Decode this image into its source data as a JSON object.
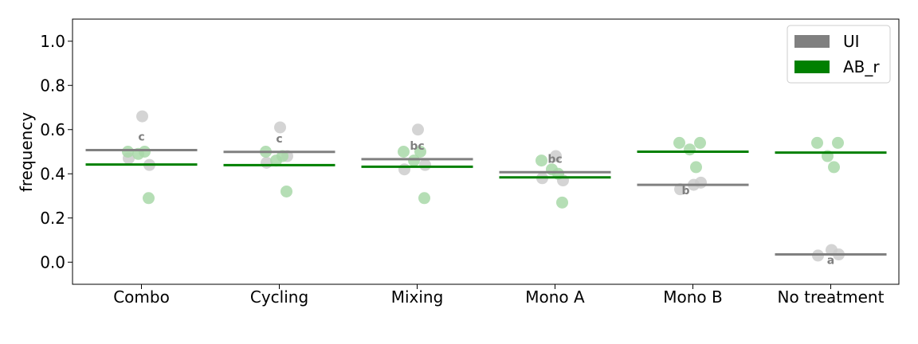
{
  "chart_data": {
    "type": "scatter",
    "title": "",
    "xlabel": "",
    "ylabel": "frequency",
    "ylim": [
      -0.1,
      1.1
    ],
    "yticks": [
      "0.0",
      "0.2",
      "0.4",
      "0.6",
      "0.8",
      "1.0"
    ],
    "categories": [
      "Combo",
      "Cycling",
      "Mixing",
      "Mono A",
      "Mono B",
      "No treatment"
    ],
    "grid": false,
    "legend_position": "top-right",
    "series": [
      {
        "name": "UI",
        "color": "#808080",
        "point_color": "#cccccc",
        "means": [
          0.507,
          0.499,
          0.466,
          0.407,
          0.35,
          0.035
        ],
        "points": [
          [
            0.66,
            0.47,
            0.44
          ],
          [
            0.61,
            0.45,
            0.48
          ],
          [
            0.6,
            0.42,
            0.44
          ],
          [
            0.48,
            0.38,
            0.37
          ],
          [
            0.35,
            0.33,
            0.36
          ],
          [
            0.055,
            0.03,
            0.035
          ]
        ]
      },
      {
        "name": "AB_r",
        "color": "#008000",
        "point_color": "#a8d8a8",
        "means": [
          0.442,
          0.439,
          0.432,
          0.384,
          0.5,
          0.496
        ],
        "points": [
          [
            0.5,
            0.49,
            0.5,
            0.29
          ],
          [
            0.5,
            0.46,
            0.48,
            0.32
          ],
          [
            0.5,
            0.46,
            0.5,
            0.29
          ],
          [
            0.46,
            0.42,
            0.4,
            0.27
          ],
          [
            0.54,
            0.51,
            0.43,
            0.54
          ],
          [
            0.54,
            0.48,
            0.43,
            0.54
          ]
        ]
      }
    ],
    "significance_labels": [
      "c",
      "c",
      "bc",
      "bc",
      "b",
      "a"
    ]
  }
}
